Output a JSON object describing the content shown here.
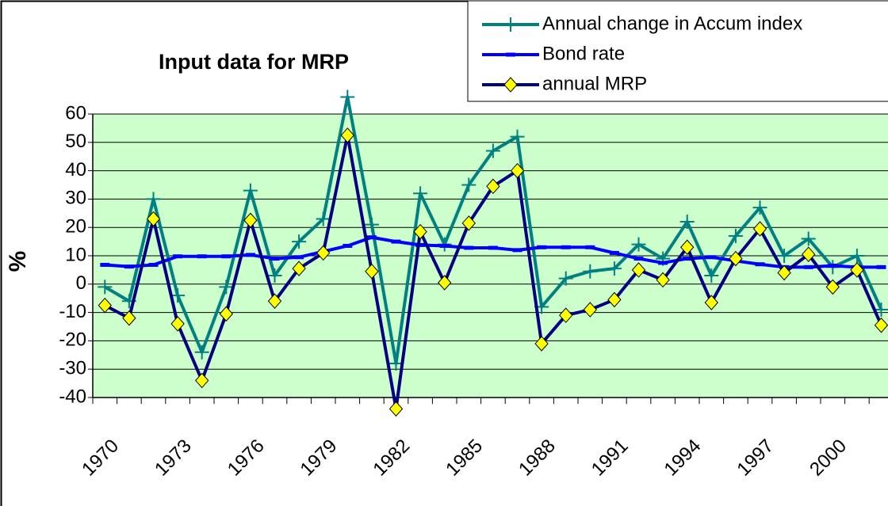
{
  "chart_data": {
    "type": "line",
    "title": "Input data for MRP",
    "y_label": "%",
    "categories": [
      "1970",
      null,
      null,
      "1973",
      null,
      null,
      "1976",
      null,
      null,
      "1979",
      null,
      null,
      "1982",
      null,
      null,
      "1985",
      null,
      null,
      "1988",
      null,
      null,
      "1991",
      null,
      null,
      "1994",
      null,
      null,
      "1997",
      null,
      null,
      "2000",
      null,
      null
    ],
    "series": [
      {
        "name": "Annual change in Accum index",
        "color": "#008080",
        "marker": "plus",
        "values": [
          -1,
          -6,
          30,
          -4,
          -24,
          -1,
          33,
          3,
          15,
          23,
          66,
          21,
          -28,
          32,
          14,
          35,
          47,
          52,
          -8,
          2,
          4.5,
          5.5,
          14,
          9,
          22,
          3,
          17,
          27,
          10,
          16,
          6,
          10,
          -9
        ]
      },
      {
        "name": "Bond rate",
        "color": "#0000ff",
        "marker": "dash",
        "values": [
          6.8,
          6.2,
          6.8,
          9.8,
          9.8,
          9.8,
          10.3,
          9,
          9.5,
          11.5,
          13.5,
          16.5,
          15,
          13.8,
          13.5,
          12.8,
          12.8,
          12,
          13,
          13,
          13,
          11,
          9,
          7.5,
          9,
          9.5,
          8.2,
          7,
          6,
          6,
          6.5,
          6,
          6
        ]
      },
      {
        "name": "annual MRP",
        "color": "#000080",
        "marker": "diamond",
        "marker_color": "#ffff00",
        "values": [
          -7.5,
          -12,
          23,
          -14,
          -34,
          -10.5,
          22.5,
          -6,
          5.5,
          11,
          52.5,
          4.5,
          -44,
          18.5,
          0.5,
          21.5,
          34.5,
          40,
          -21,
          -11,
          -9,
          -5.5,
          5,
          1.5,
          13,
          -6.5,
          9,
          19.5,
          4,
          10.5,
          -1,
          5,
          -14.5
        ]
      }
    ],
    "ylim": [
      -40,
      60
    ],
    "yticks": [
      -40,
      -30,
      -20,
      -10,
      0,
      10,
      20,
      30,
      40,
      50,
      60
    ],
    "grid": true,
    "plot_background": "#ccffcc",
    "legend": "top-right"
  }
}
